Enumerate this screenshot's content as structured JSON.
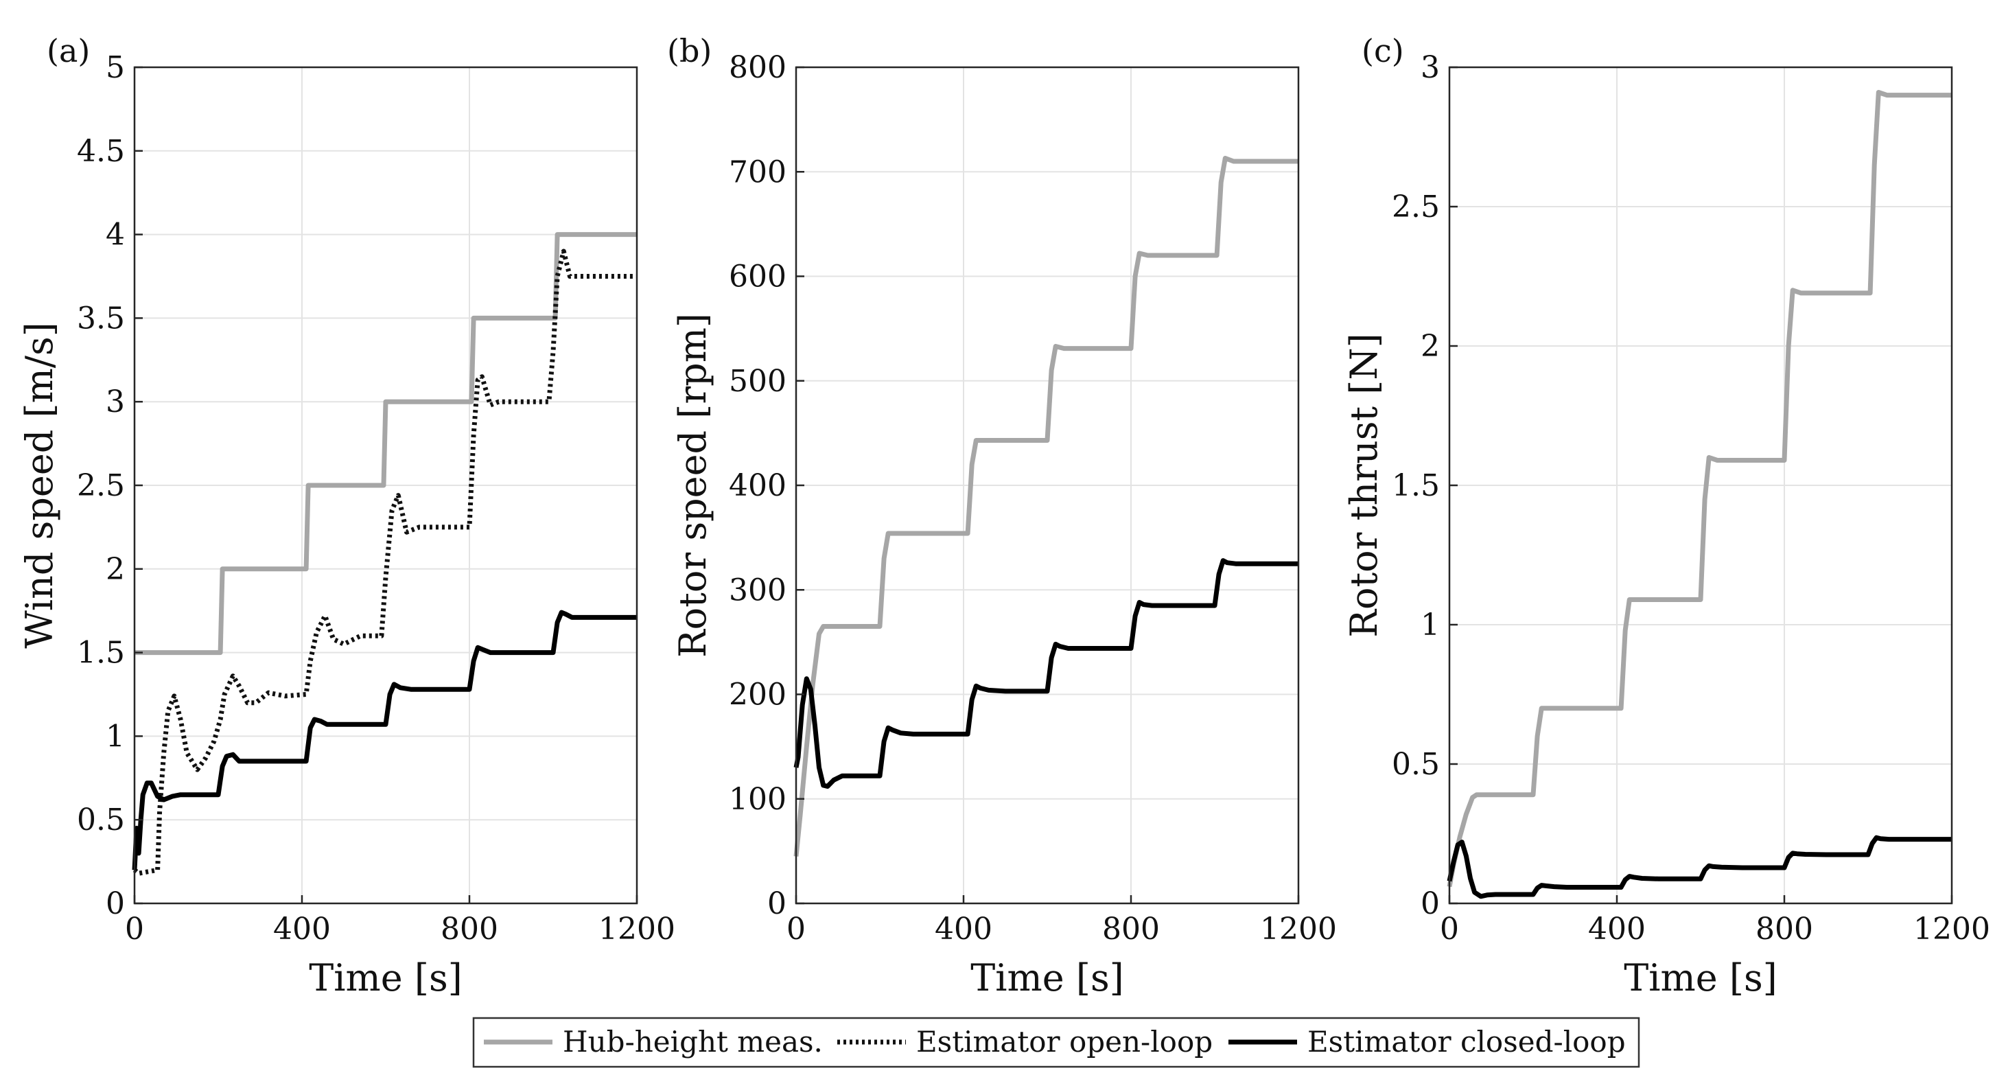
{
  "chart_data": [
    {
      "type": "line",
      "panel_label": "(a)",
      "xlabel": "Time [s]",
      "ylabel": "Wind speed [m/s]",
      "xlim": [
        0,
        1200
      ],
      "ylim": [
        0,
        5
      ],
      "xticks": [
        0,
        400,
        800,
        1200
      ],
      "yticks": [
        0,
        0.5,
        1,
        1.5,
        2,
        2.5,
        3,
        3.5,
        4,
        4.5,
        5
      ],
      "ytick_labels": [
        "0",
        "0.5",
        "1",
        "1.5",
        "2",
        "2.5",
        "3",
        "3.5",
        "4",
        "4.5",
        "5"
      ],
      "grid": true,
      "series": [
        {
          "name": "Hub-height meas.",
          "color": "#a6a6a6",
          "style": "solid",
          "x": [
            0,
            205,
            210,
            410,
            415,
            595,
            600,
            805,
            810,
            1005,
            1010,
            1200
          ],
          "y": [
            1.5,
            1.5,
            2.0,
            2.0,
            2.5,
            2.5,
            3.0,
            3.0,
            3.5,
            3.5,
            4.0,
            4.0
          ]
        },
        {
          "name": "Estimator open-loop",
          "color": "#111111",
          "style": "dotted",
          "x": [
            0,
            10,
            55,
            60,
            70,
            80,
            95,
            110,
            125,
            150,
            170,
            190,
            205,
            215,
            235,
            250,
            270,
            290,
            320,
            360,
            410,
            420,
            435,
            455,
            475,
            500,
            540,
            590,
            600,
            615,
            630,
            650,
            680,
            800,
            810,
            820,
            830,
            850,
            870,
            990,
            1000,
            1010,
            1025,
            1040,
            1200
          ],
          "y": [
            0.2,
            0.18,
            0.2,
            0.55,
            0.9,
            1.15,
            1.24,
            1.1,
            0.9,
            0.8,
            0.87,
            0.97,
            1.1,
            1.25,
            1.36,
            1.3,
            1.2,
            1.2,
            1.26,
            1.24,
            1.25,
            1.45,
            1.62,
            1.72,
            1.58,
            1.55,
            1.6,
            1.6,
            1.95,
            2.35,
            2.44,
            2.22,
            2.25,
            2.25,
            2.8,
            3.13,
            3.15,
            2.98,
            3.0,
            3.0,
            3.3,
            3.75,
            3.9,
            3.75,
            3.75
          ]
        },
        {
          "name": "Estimator closed-loop",
          "color": "#000000",
          "style": "solid",
          "x": [
            0,
            5,
            10,
            15,
            20,
            30,
            40,
            55,
            70,
            90,
            110,
            140,
            200,
            210,
            220,
            235,
            250,
            300,
            410,
            420,
            430,
            445,
            460,
            500,
            600,
            610,
            620,
            635,
            660,
            700,
            800,
            810,
            820,
            830,
            850,
            900,
            1000,
            1010,
            1020,
            1030,
            1045,
            1100,
            1200
          ],
          "y": [
            0.2,
            0.45,
            0.3,
            0.5,
            0.65,
            0.72,
            0.72,
            0.64,
            0.62,
            0.64,
            0.65,
            0.65,
            0.65,
            0.82,
            0.88,
            0.89,
            0.85,
            0.85,
            0.85,
            1.05,
            1.1,
            1.09,
            1.07,
            1.07,
            1.07,
            1.25,
            1.31,
            1.29,
            1.28,
            1.28,
            1.28,
            1.45,
            1.53,
            1.52,
            1.5,
            1.5,
            1.5,
            1.68,
            1.74,
            1.73,
            1.71,
            1.71,
            1.71
          ]
        }
      ]
    },
    {
      "type": "line",
      "panel_label": "(b)",
      "xlabel": "Time [s]",
      "ylabel": "Rotor speed [rpm]",
      "xlim": [
        0,
        1200
      ],
      "ylim": [
        0,
        800
      ],
      "xticks": [
        0,
        400,
        800,
        1200
      ],
      "yticks": [
        0,
        100,
        200,
        300,
        400,
        500,
        600,
        700,
        800
      ],
      "ytick_labels": [
        "0",
        "100",
        "200",
        "300",
        "400",
        "500",
        "600",
        "700",
        "800"
      ],
      "grid": true,
      "series": [
        {
          "name": "Hub-height meas.",
          "color": "#a6a6a6",
          "style": "solid",
          "x": [
            0,
            10,
            25,
            40,
            55,
            65,
            200,
            210,
            220,
            240,
            410,
            420,
            430,
            450,
            600,
            610,
            620,
            640,
            800,
            810,
            820,
            840,
            1005,
            1015,
            1025,
            1045,
            1200
          ],
          "y": [
            45,
            85,
            150,
            210,
            258,
            265,
            265,
            330,
            354,
            354,
            354,
            420,
            443,
            443,
            443,
            510,
            533,
            531,
            531,
            600,
            622,
            620,
            620,
            690,
            713,
            710,
            710
          ]
        },
        {
          "name": "Estimator closed-loop",
          "color": "#000000",
          "style": "solid",
          "x": [
            0,
            5,
            15,
            25,
            35,
            45,
            55,
            65,
            75,
            90,
            110,
            140,
            200,
            210,
            220,
            230,
            250,
            280,
            410,
            420,
            430,
            440,
            460,
            500,
            600,
            610,
            620,
            630,
            650,
            700,
            800,
            810,
            820,
            830,
            850,
            900,
            1000,
            1010,
            1020,
            1030,
            1050,
            1200
          ],
          "y": [
            130,
            140,
            190,
            215,
            205,
            170,
            130,
            113,
            112,
            118,
            122,
            122,
            122,
            155,
            168,
            166,
            163,
            162,
            162,
            195,
            208,
            206,
            204,
            203,
            203,
            235,
            248,
            246,
            244,
            244,
            244,
            275,
            288,
            286,
            285,
            285,
            285,
            315,
            328,
            326,
            325,
            325
          ]
        }
      ]
    },
    {
      "type": "line",
      "panel_label": "(c)",
      "xlabel": "Time [s]",
      "ylabel": "Rotor thrust [N]",
      "xlim": [
        0,
        1200
      ],
      "ylim": [
        0,
        3
      ],
      "xticks": [
        0,
        400,
        800,
        1200
      ],
      "yticks": [
        0,
        0.5,
        1,
        1.5,
        2,
        2.5,
        3
      ],
      "ytick_labels": [
        "0",
        "0.5",
        "1",
        "1.5",
        "2",
        "2.5",
        "3"
      ],
      "grid": true,
      "series": [
        {
          "name": "Hub-height meas.",
          "color": "#a6a6a6",
          "style": "solid",
          "x": [
            0,
            10,
            25,
            40,
            55,
            65,
            200,
            210,
            220,
            240,
            410,
            420,
            430,
            450,
            600,
            610,
            620,
            640,
            800,
            810,
            820,
            840,
            1005,
            1015,
            1025,
            1045,
            1200
          ],
          "y": [
            0.06,
            0.14,
            0.24,
            0.32,
            0.38,
            0.39,
            0.39,
            0.6,
            0.7,
            0.7,
            0.7,
            0.98,
            1.09,
            1.09,
            1.09,
            1.45,
            1.6,
            1.59,
            1.59,
            2.0,
            2.2,
            2.19,
            2.19,
            2.65,
            2.91,
            2.9,
            2.9
          ]
        },
        {
          "name": "Estimator closed-loop",
          "color": "#000000",
          "style": "solid",
          "x": [
            0,
            10,
            20,
            30,
            40,
            50,
            60,
            75,
            90,
            110,
            140,
            200,
            210,
            220,
            230,
            250,
            280,
            410,
            420,
            430,
            440,
            460,
            500,
            600,
            610,
            620,
            630,
            650,
            700,
            800,
            810,
            820,
            830,
            850,
            900,
            1000,
            1010,
            1020,
            1030,
            1050,
            1200
          ],
          "y": [
            0.08,
            0.15,
            0.21,
            0.22,
            0.17,
            0.09,
            0.04,
            0.025,
            0.03,
            0.032,
            0.032,
            0.032,
            0.055,
            0.065,
            0.063,
            0.06,
            0.058,
            0.058,
            0.085,
            0.097,
            0.094,
            0.09,
            0.088,
            0.088,
            0.12,
            0.135,
            0.132,
            0.13,
            0.128,
            0.128,
            0.165,
            0.18,
            0.178,
            0.176,
            0.175,
            0.175,
            0.215,
            0.236,
            0.232,
            0.23,
            0.23
          ]
        }
      ]
    }
  ],
  "legend": {
    "location": "bottom-center",
    "entries": [
      {
        "label": "Hub-height meas.",
        "color": "#a6a6a6",
        "style": "solid"
      },
      {
        "label": "Estimator open-loop",
        "color": "#111111",
        "style": "dotted"
      },
      {
        "label": "Estimator closed-loop",
        "color": "#000000",
        "style": "solid"
      }
    ]
  }
}
